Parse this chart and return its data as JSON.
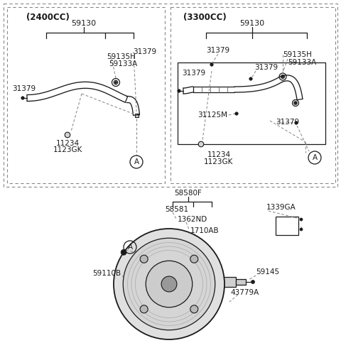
{
  "bg": "#ffffff",
  "lc": "#1a1a1a",
  "gc": "#888888",
  "box1_title": "(2400CC)",
  "box2_title": "(3300CC)",
  "part_labels_bottom": [
    "58580F",
    "58581",
    "1362ND",
    "1710AB",
    "1339GA",
    "59110B",
    "59145",
    "43779A"
  ]
}
